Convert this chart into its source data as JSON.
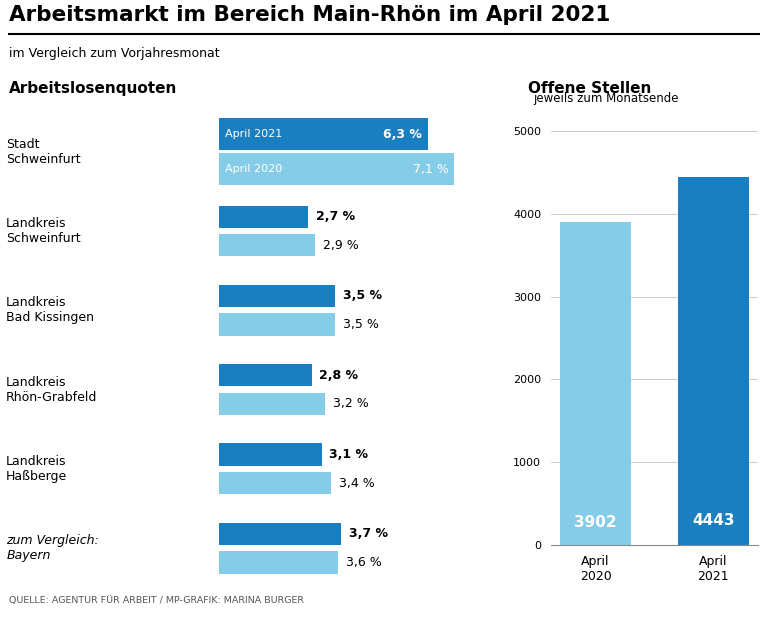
{
  "title": "Arbeitsmarkt im Bereich Main-Rhön im April 2021",
  "subtitle": "im Vergleich zum Vorjahresmonat",
  "left_section_title": "Arbeitslosenquoten",
  "right_section_title": "Offene Stellen",
  "right_section_subtitle": "jeweils zum Monatsende",
  "source": "QUELLE: AGENTUR FÜR ARBEIT / MP-GRAFIK: MARINA BURGER",
  "color_2021": "#1a7fc1",
  "color_2020": "#85cce8",
  "section_bg": "#e0d8ce",
  "regions": [
    {
      "label": "Stadt\nSchweinfurt",
      "val_2021": 6.3,
      "val_2020": 7.1,
      "show_label_inside": true,
      "bg": "#e0d8ce"
    },
    {
      "label": "Landkreis\nSchweinfurt",
      "val_2021": 2.7,
      "val_2020": 2.9,
      "show_label_inside": false,
      "bg": "#f5f1ec"
    },
    {
      "label": "Landkreis\nBad Kissingen",
      "val_2021": 3.5,
      "val_2020": 3.5,
      "show_label_inside": false,
      "bg": "#e8e2da"
    },
    {
      "label": "Landkreis\nRhön-Grabfeld",
      "val_2021": 2.8,
      "val_2020": 3.2,
      "show_label_inside": false,
      "bg": "#f5f1ec"
    },
    {
      "label": "Landkreis\nHaßberge",
      "val_2021": 3.1,
      "val_2020": 3.4,
      "show_label_inside": false,
      "bg": "#e8e2da"
    },
    {
      "label": "zum Vergleich:\nBayern",
      "val_2021": 3.7,
      "val_2020": 3.6,
      "show_label_inside": false,
      "bg": "#f5f1ec",
      "italic_label": true
    }
  ],
  "bar_chart": {
    "categories": [
      "April\n2020",
      "April\n2021"
    ],
    "values": [
      3902,
      4443
    ],
    "colors": [
      "#85cce8",
      "#1a7fc1"
    ],
    "ylim": [
      0,
      5000
    ],
    "yticks": [
      0,
      1000,
      2000,
      3000,
      4000,
      5000
    ],
    "value_labels": [
      "3902",
      "4443"
    ]
  },
  "max_val": 8.0
}
